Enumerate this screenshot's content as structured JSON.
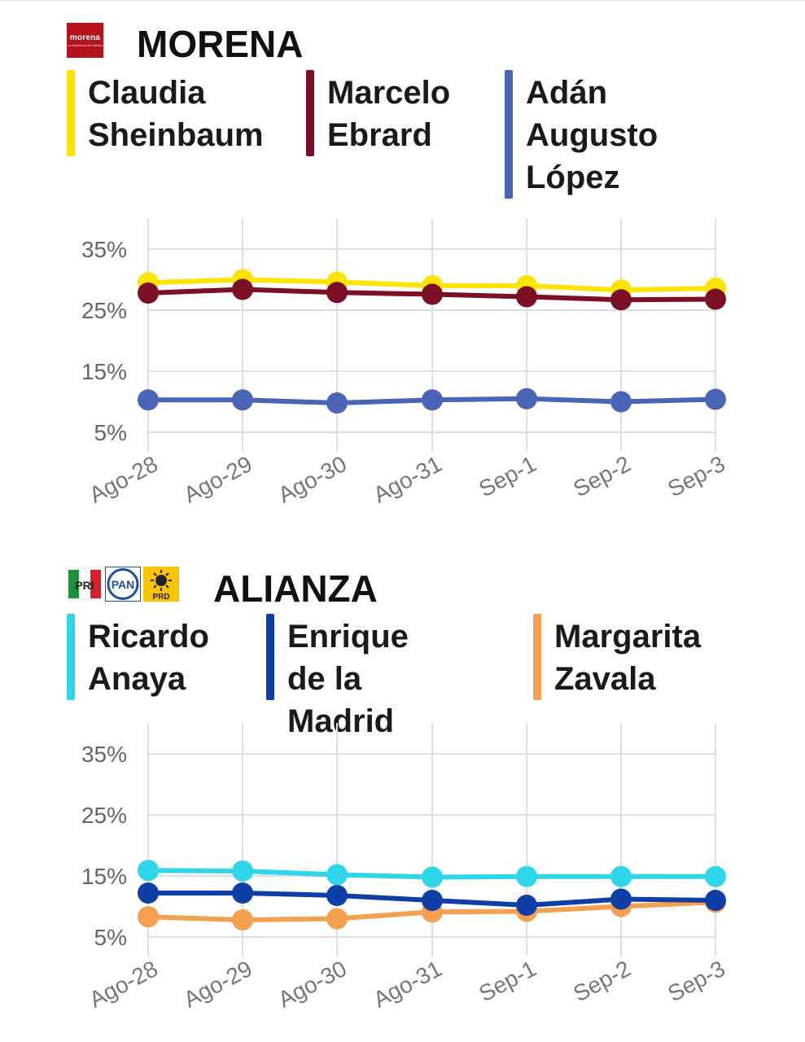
{
  "chart_data": [
    {
      "type": "line",
      "title": "MORENA",
      "categories": [
        "Ago-28",
        "Ago-29",
        "Ago-30",
        "Ago-31",
        "Sep-1",
        "Sep-2",
        "Sep-3"
      ],
      "yticks": [
        "35%",
        "25%",
        "15%",
        "5%"
      ],
      "ylim": [
        5,
        35
      ],
      "grid": true,
      "legend": "top",
      "series": [
        {
          "name": "Claudia\nSheinbaum",
          "color": "#fde300",
          "values": [
            29.5,
            30.0,
            29.6,
            29.0,
            29.0,
            28.3,
            28.6
          ]
        },
        {
          "name": "Marcelo\nEbrard",
          "color": "#7b0f24",
          "values": [
            27.8,
            28.4,
            27.9,
            27.6,
            27.2,
            26.7,
            26.8
          ]
        },
        {
          "name": "Adán\nAugusto\nLópez",
          "color": "#4a64b6",
          "values": [
            10.3,
            10.3,
            9.8,
            10.3,
            10.5,
            10.0,
            10.4
          ]
        }
      ]
    },
    {
      "type": "line",
      "title": "ALIANZA",
      "categories": [
        "Ago-28",
        "Ago-29",
        "Ago-30",
        "Ago-31",
        "Sep-1",
        "Sep-2",
        "Sep-3"
      ],
      "yticks": [
        "35%",
        "25%",
        "15%",
        "5%"
      ],
      "ylim": [
        5,
        35
      ],
      "grid": true,
      "legend": "top",
      "series": [
        {
          "name": "Margarita\nZavala",
          "color": "#f5a04e",
          "values": [
            8.3,
            7.8,
            8.0,
            9.1,
            9.2,
            10.0,
            10.7
          ]
        },
        {
          "name": "Enrique de la\nMadrid",
          "color": "#0f3fa6",
          "values": [
            12.2,
            12.2,
            11.8,
            11.0,
            10.2,
            11.2,
            11.0
          ]
        },
        {
          "name": "Ricardo\nAnaya",
          "color": "#2ed6e8",
          "values": [
            15.9,
            15.8,
            15.2,
            14.8,
            14.9,
            14.9,
            14.9
          ]
        }
      ]
    }
  ],
  "logos": {
    "morena": {
      "text": "morena",
      "subtext": "La esperanza de México"
    },
    "pri": "PRI",
    "pan": "PAN",
    "prd": "PRD"
  }
}
